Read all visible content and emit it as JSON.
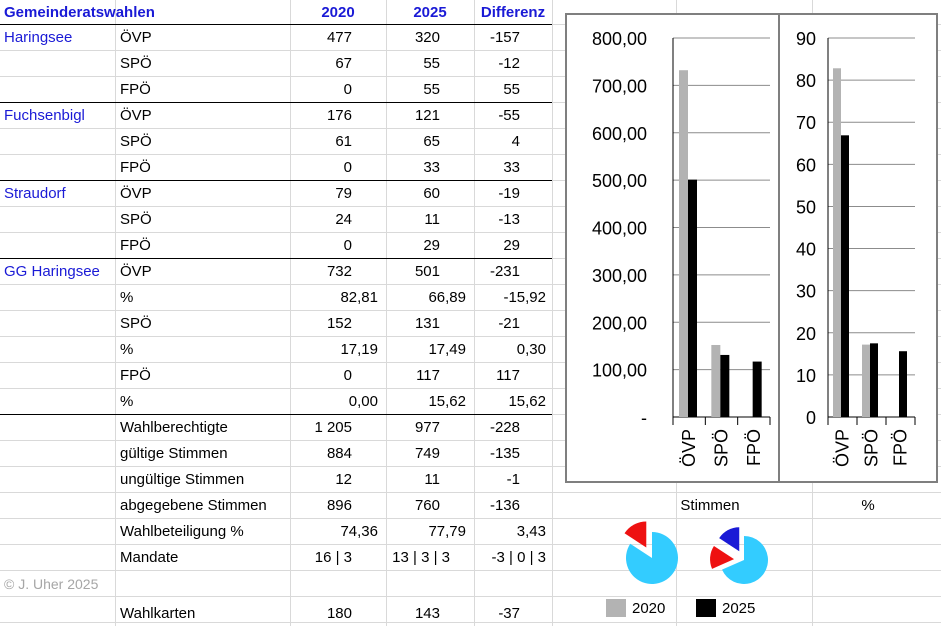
{
  "table": {
    "headers": {
      "title": "Gemeinderatswahlen",
      "y2020": "2020",
      "y2025": "2025",
      "diff": "Differenz"
    },
    "rows": [
      {
        "place": "Haringsee",
        "party": "ÖVP",
        "v2020": "477",
        "v2025": "320",
        "diff": "-157"
      },
      {
        "place": "",
        "party": "SPÖ",
        "v2020": "67",
        "v2025": "55",
        "diff": "-12"
      },
      {
        "place": "",
        "party": "FPÖ",
        "v2020": "0",
        "v2025": "55",
        "diff": "55"
      },
      {
        "place": "Fuchsenbigl",
        "party": "ÖVP",
        "v2020": "176",
        "v2025": "121",
        "diff": "-55"
      },
      {
        "place": "",
        "party": "SPÖ",
        "v2020": "61",
        "v2025": "65",
        "diff": "4"
      },
      {
        "place": "",
        "party": "FPÖ",
        "v2020": "0",
        "v2025": "33",
        "diff": "33"
      },
      {
        "place": "Straudorf",
        "party": "ÖVP",
        "v2020": "79",
        "v2025": "60",
        "diff": "-19"
      },
      {
        "place": "",
        "party": "SPÖ",
        "v2020": "24",
        "v2025": "11",
        "diff": "-13"
      },
      {
        "place": "",
        "party": "FPÖ",
        "v2020": "0",
        "v2025": "29",
        "diff": "29"
      },
      {
        "place": "GG Haringsee",
        "party": "ÖVP",
        "v2020": "732",
        "v2025": "501",
        "diff": "-231"
      },
      {
        "place": "",
        "party": "%",
        "v2020": "82,81",
        "v2025": "66,89",
        "diff": "-15,92"
      },
      {
        "place": "",
        "party": "SPÖ",
        "v2020": "152",
        "v2025": "131",
        "diff": "-21"
      },
      {
        "place": "",
        "party": "%",
        "v2020": "17,19",
        "v2025": "17,49",
        "diff": "0,30"
      },
      {
        "place": "",
        "party": "FPÖ",
        "v2020": "0",
        "v2025": "117",
        "diff": "117"
      },
      {
        "place": "",
        "party": "%",
        "v2020": "0,00",
        "v2025": "15,62",
        "diff": "15,62"
      },
      {
        "place": "",
        "party": "Wahlberechtigte",
        "v2020": "1 205",
        "v2025": "977",
        "diff": "-228"
      },
      {
        "place": "",
        "party": "gültige Stimmen",
        "v2020": "884",
        "v2025": "749",
        "diff": "-135"
      },
      {
        "place": "",
        "party": "ungültige Stimmen",
        "v2020": "12",
        "v2025": "11",
        "diff": "-1"
      },
      {
        "place": "",
        "party": "abgegebene Stimmen",
        "v2020": "896",
        "v2025": "760",
        "diff": "-136"
      },
      {
        "place": "",
        "party": "Wahlbeteiligung %",
        "v2020": "74,36",
        "v2025": "77,79",
        "diff": "3,43"
      },
      {
        "place": "",
        "party": "Mandate",
        "v2020": "16 | 3",
        "v2025": "13 | 3 | 3",
        "diff": "-3 | 0 | 3"
      },
      {
        "place": "© J. Uher 2025",
        "party": "",
        "v2020": "",
        "v2025": "",
        "diff": ""
      },
      {
        "place": "",
        "party": "Wahlkarten",
        "v2020": "180",
        "v2025": "143",
        "diff": "-37"
      }
    ]
  },
  "labels": {
    "stimmen": "Stimmen",
    "percent": "%",
    "legend_2020": "2020",
    "legend_2025": "2025"
  },
  "colors": {
    "y2020": "#b3b3b3",
    "y2025": "#000000",
    "pie_blue": "#33ccff",
    "pie_red": "#ee1111",
    "pie_navy": "#1a1ad6"
  },
  "chart_data": [
    {
      "type": "bar",
      "categories": [
        "ÖVP",
        "SPÖ",
        "FPÖ"
      ],
      "series": [
        {
          "name": "2020",
          "values": [
            732,
            152,
            0
          ]
        },
        {
          "name": "2025",
          "values": [
            501,
            131,
            117
          ]
        }
      ],
      "ylim": [
        0,
        800
      ],
      "yticks": [
        "-",
        "100,00",
        "200,00",
        "300,00",
        "400,00",
        "500,00",
        "600,00",
        "700,00",
        "800,00"
      ],
      "grid": true,
      "xlabel": "Stimmen"
    },
    {
      "type": "bar",
      "categories": [
        "ÖVP",
        "SPÖ",
        "FPÖ"
      ],
      "series": [
        {
          "name": "2020",
          "values": [
            82.81,
            17.19,
            0
          ]
        },
        {
          "name": "2025",
          "values": [
            66.89,
            17.49,
            15.62
          ]
        }
      ],
      "ylim": [
        0,
        90
      ],
      "yticks": [
        "0",
        "10",
        "20",
        "30",
        "40",
        "50",
        "60",
        "70",
        "80",
        "90"
      ],
      "grid": true,
      "xlabel": "%"
    },
    {
      "type": "pie",
      "name": "2020",
      "values": [
        16,
        3
      ],
      "colors": [
        "#33ccff",
        "#ee1111"
      ]
    },
    {
      "type": "pie",
      "name": "2025",
      "values": [
        13,
        3,
        3
      ],
      "colors": [
        "#33ccff",
        "#ee1111",
        "#1a1ad6"
      ]
    }
  ]
}
